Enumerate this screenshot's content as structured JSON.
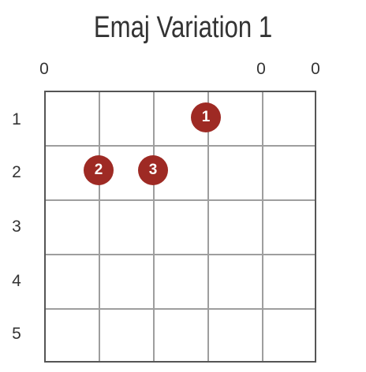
{
  "title": "Emaj Variation 1",
  "open_strings": {
    "string1": "0",
    "string5": "0",
    "string6": "0"
  },
  "frets": [
    "1",
    "2",
    "3",
    "4",
    "5"
  ],
  "fingers": [
    {
      "label": "1",
      "string": 4,
      "fret": 1
    },
    {
      "label": "2",
      "string": 2,
      "fret": 2
    },
    {
      "label": "3",
      "string": 3,
      "fret": 2
    }
  ],
  "dot_color": "#9e2a24"
}
